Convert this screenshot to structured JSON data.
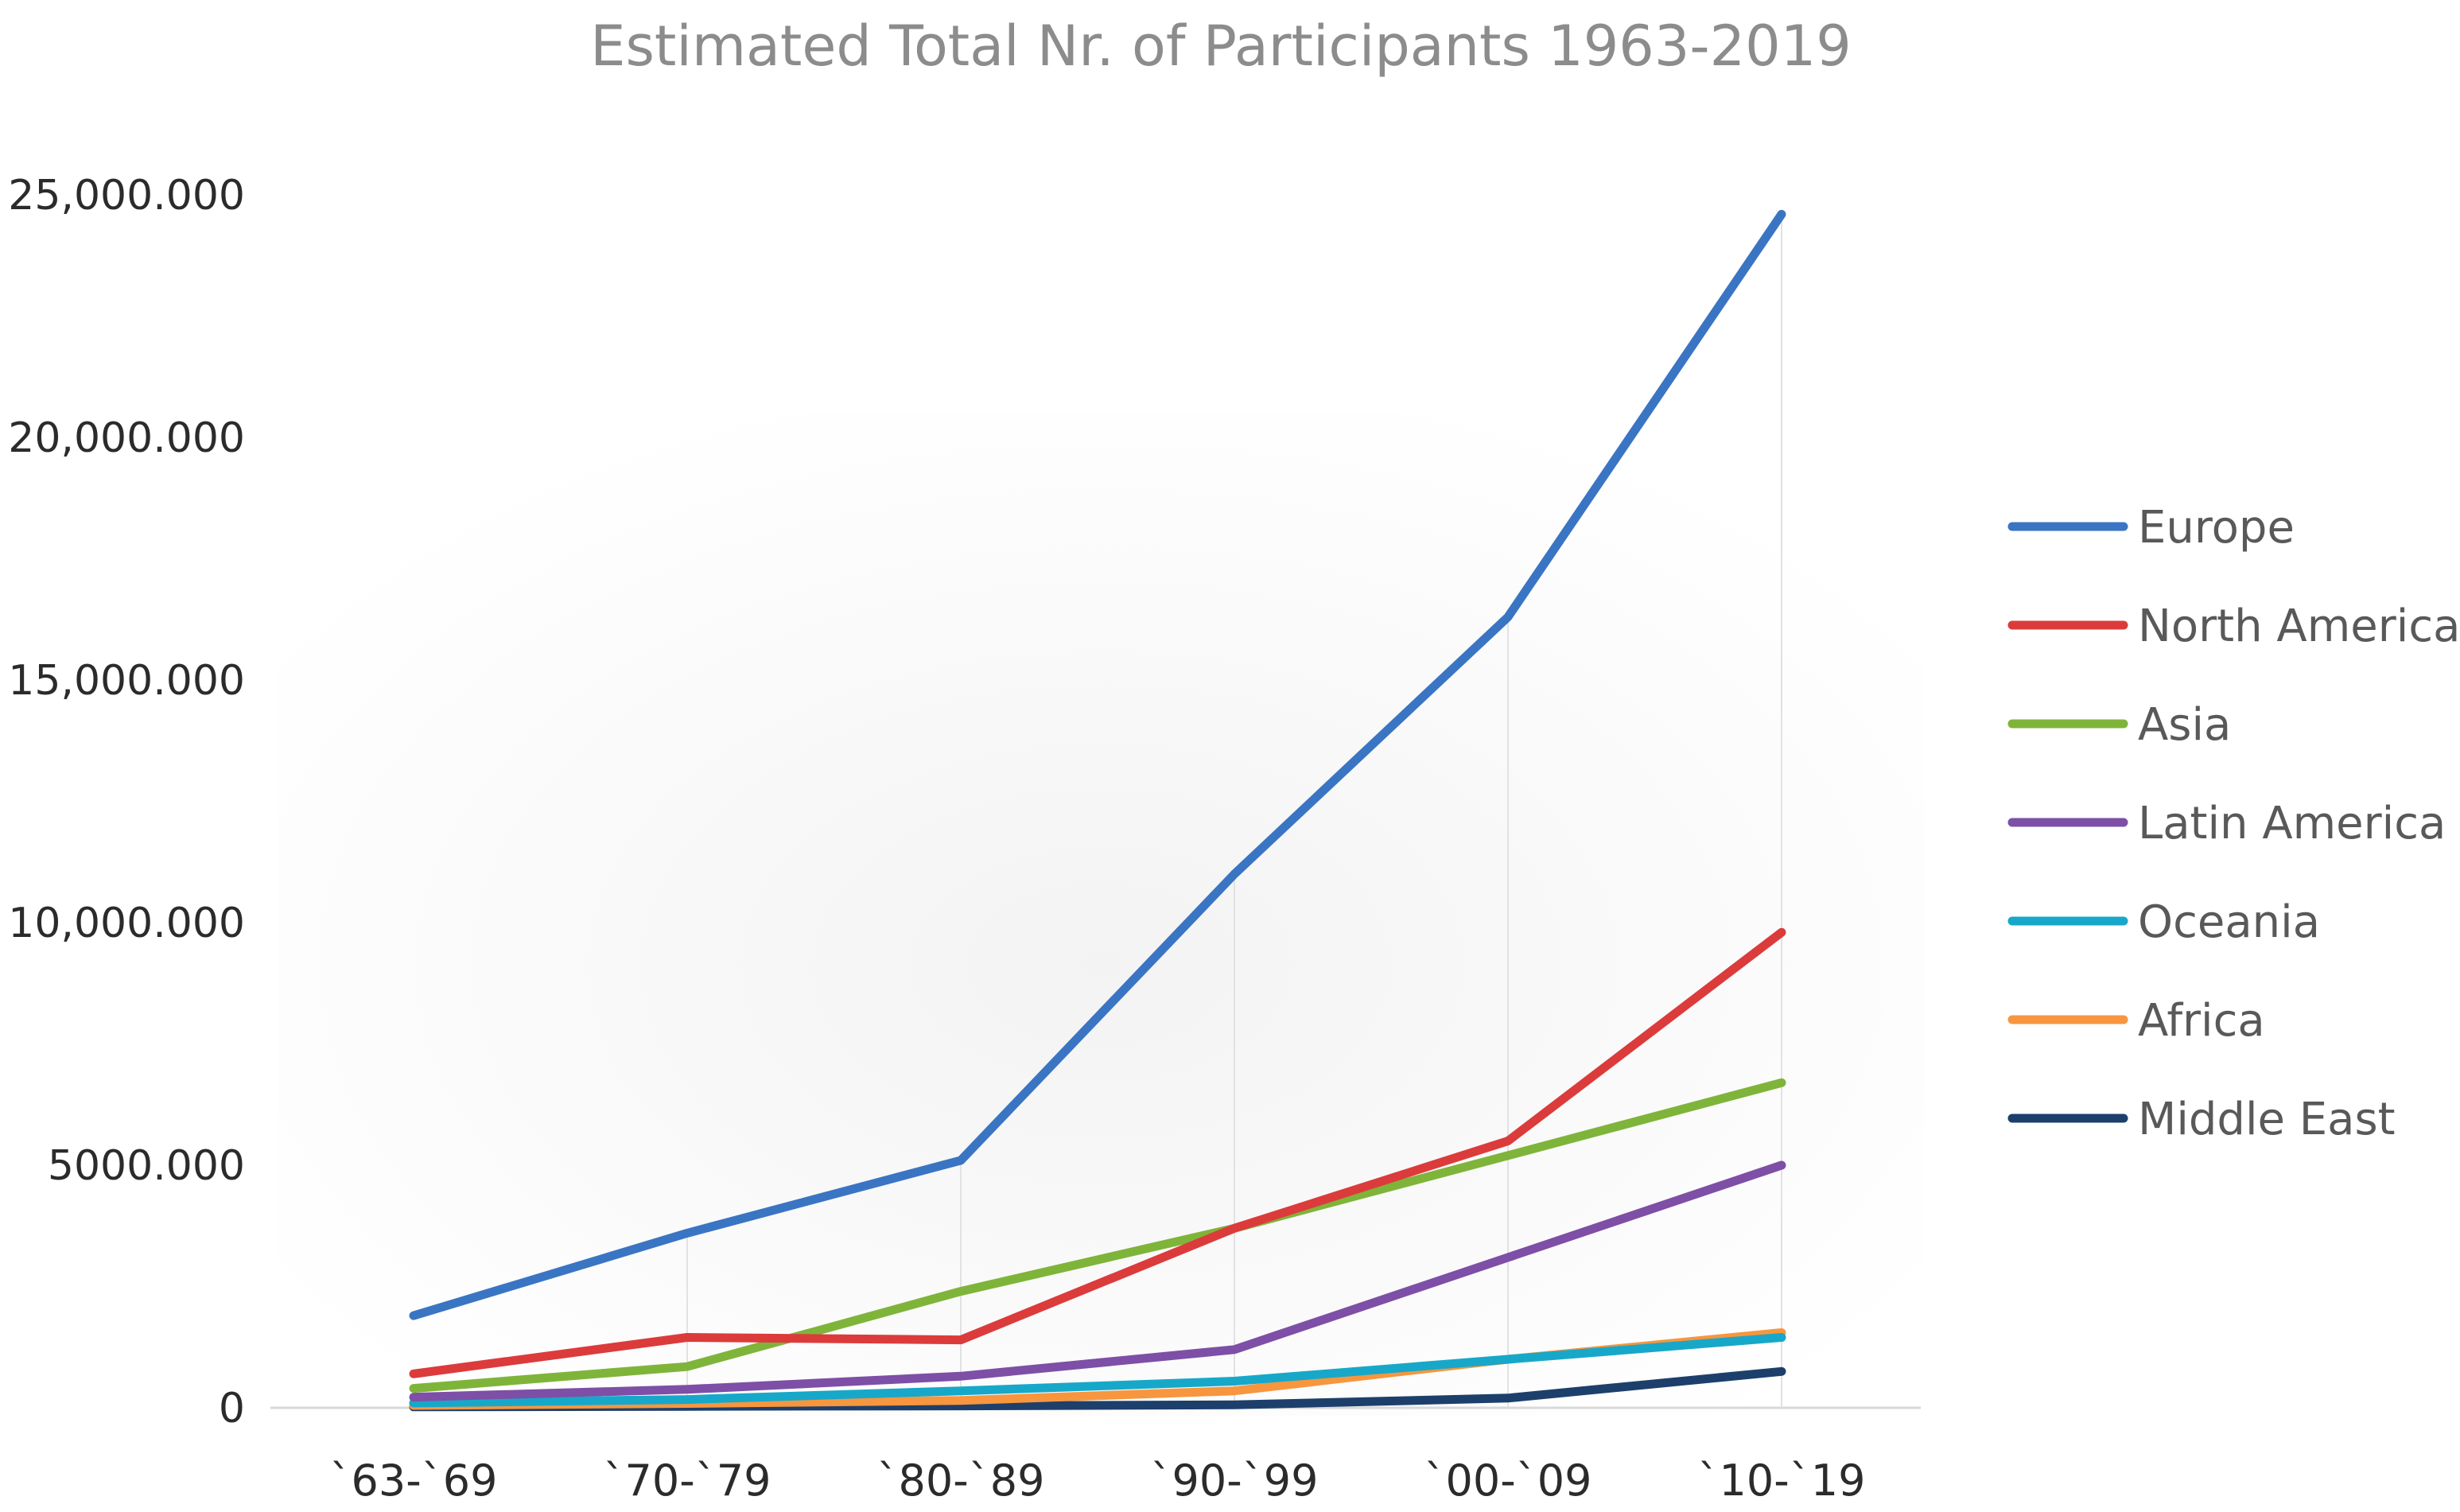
{
  "chart_data": {
    "type": "line",
    "title": "Estimated Total Nr. of Participants 1963-2019",
    "xlabel": "",
    "ylabel": "",
    "categories": [
      "`63-`69",
      "`70-`79",
      "`80-`89",
      "`90-`99",
      "`00-`09",
      "`10-`19"
    ],
    "ylim": [
      0,
      25000000
    ],
    "y_ticks": [
      0,
      5000000,
      10000000,
      15000000,
      20000000,
      25000000
    ],
    "y_tick_labels": [
      "0",
      "5000.000",
      "10,000.000",
      "15,000.000",
      "20,000.000",
      "25,000.000"
    ],
    "grid": false,
    "legend_position": "right",
    "series": [
      {
        "name": "Europe",
        "color": "#3a75c3",
        "values": [
          1900000,
          3600000,
          5100000,
          11000000,
          16300000,
          24600000
        ]
      },
      {
        "name": "North America",
        "color": "#dc3b3b",
        "values": [
          700000,
          1450000,
          1400000,
          3700000,
          5500000,
          9800000
        ]
      },
      {
        "name": "Asia",
        "color": "#7fb43a",
        "values": [
          400000,
          850000,
          2400000,
          3700000,
          5200000,
          6700000
        ]
      },
      {
        "name": "Latin America",
        "color": "#7e4fa6",
        "values": [
          220000,
          380000,
          650000,
          1200000,
          3100000,
          5000000
        ]
      },
      {
        "name": "Oceania",
        "color": "#17a8c9",
        "values": [
          100000,
          170000,
          350000,
          550000,
          1000000,
          1450000
        ]
      },
      {
        "name": "Africa",
        "color": "#f7963e",
        "values": [
          50000,
          90000,
          150000,
          350000,
          1000000,
          1550000
        ]
      },
      {
        "name": "Middle East",
        "color": "#1d3f6b",
        "values": [
          20000,
          30000,
          40000,
          60000,
          200000,
          750000
        ]
      }
    ]
  }
}
